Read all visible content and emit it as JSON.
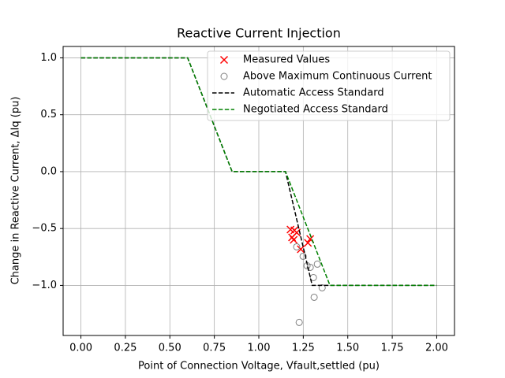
{
  "chart_data": {
    "type": "line",
    "title": "Reactive Current Injection",
    "xlabel": "Point of Connection Voltage, Vfault,settled (pu)",
    "ylabel": "Change in Reactive Current, ΔIq (pu)",
    "xlim": [
      -0.1,
      2.1
    ],
    "ylim": [
      -1.44,
      1.1
    ],
    "xticks": [
      {
        "value": 0,
        "label": "0.00"
      },
      {
        "value": 0.25,
        "label": "0.25"
      },
      {
        "value": 0.5,
        "label": "0.50"
      },
      {
        "value": 0.75,
        "label": "0.75"
      },
      {
        "value": 1,
        "label": "1.00"
      },
      {
        "value": 1.25,
        "label": "1.25"
      },
      {
        "value": 1.5,
        "label": "1.50"
      },
      {
        "value": 1.75,
        "label": "1.75"
      },
      {
        "value": 2,
        "label": "2.00"
      }
    ],
    "yticks": [
      {
        "value": -1,
        "label": "−1.0"
      },
      {
        "value": -0.5,
        "label": "−0.5"
      },
      {
        "value": 0,
        "label": "0.0"
      },
      {
        "value": 0.5,
        "label": "0.5"
      },
      {
        "value": 1,
        "label": "1.0"
      }
    ],
    "grid": true,
    "legend": "upper right",
    "series": [
      {
        "name": "Measured Values",
        "color": "#ff0000",
        "mark": "x",
        "x": [
          1.178,
          1.2,
          1.187,
          1.213,
          1.196,
          1.236,
          1.276,
          1.289
        ],
        "values": [
          -0.509,
          -0.516,
          -0.578,
          -0.536,
          -0.599,
          -0.682,
          -0.626,
          -0.592
        ]
      },
      {
        "name": "Above Maximum Continuous Current",
        "color": "#808080",
        "mark": "o",
        "x": [
          1.213,
          1.249,
          1.271,
          1.289,
          1.307,
          1.329,
          1.311,
          1.356,
          1.227
        ],
        "values": [
          -0.661,
          -0.744,
          -0.827,
          -0.841,
          -0.931,
          -0.813,
          -1.104,
          -1.021,
          -1.325
        ]
      },
      {
        "name": "Automatic Access Standard",
        "color": "#000000",
        "mark": "dashed",
        "x": [
          0,
          0.6,
          0.85,
          1.15,
          1.3,
          2
        ],
        "values": [
          1,
          1,
          0,
          0,
          -1,
          -1
        ]
      },
      {
        "name": "Negotiated Access Standard",
        "color": "#008000",
        "mark": "dashed",
        "x": [
          0,
          0.6,
          0.85,
          1.15,
          1.4,
          2
        ],
        "values": [
          1,
          1,
          0,
          0,
          -1,
          -1
        ]
      }
    ]
  }
}
